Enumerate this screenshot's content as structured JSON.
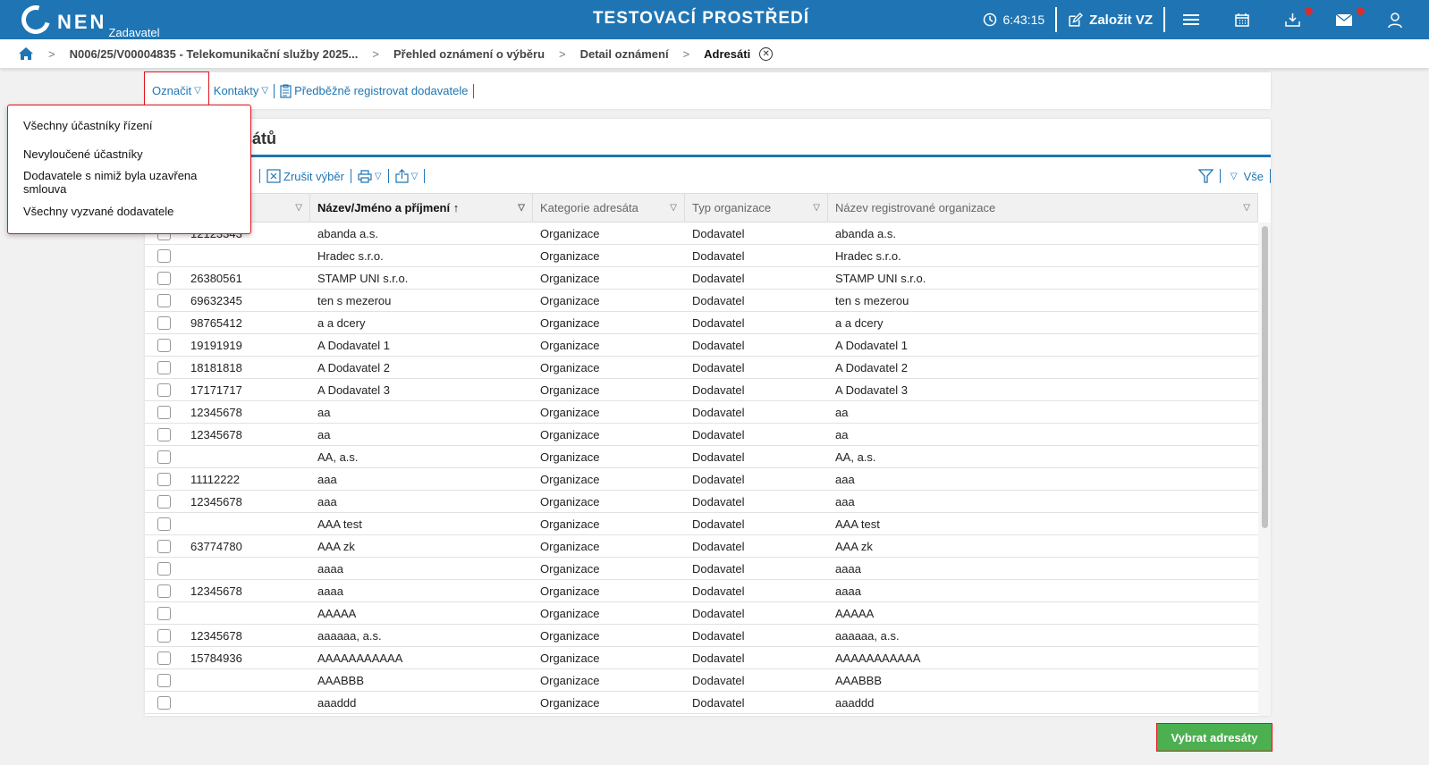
{
  "header": {
    "logo": "NEN",
    "logo_sub": "Zadavatel",
    "env_title": "TESTOVACÍ PROSTŘEDÍ",
    "timer": "6:43:15",
    "create_label": "Založit VZ"
  },
  "breadcrumb": {
    "items": [
      "N006/25/V00004835 - Telekomunikační služby 2025...",
      "Přehled oznámení o výběru",
      "Detail oznámení"
    ],
    "current": "Adresáti"
  },
  "toolbar": {
    "mark": "Označit",
    "contacts": "Kontakty",
    "preregister": "Předběžně registrovat dodavatele"
  },
  "dropdown": {
    "items": [
      "Všechny účastníky řízení",
      "Nevyloučené účastníky",
      "Dodavatele s nimiž byla uzavřena smlouva",
      "Všechny vyzvané dodavatele"
    ]
  },
  "panel": {
    "title": "sátů",
    "clear_selection": "Zrušit výběr",
    "all": "Vše"
  },
  "table": {
    "columns": [
      "",
      "Název/Jméno a příjmení",
      "Kategorie adresáta",
      "Typ organizace",
      "Název registrované organizace"
    ],
    "rows": [
      [
        "12123343",
        "abanda a.s.",
        "Organizace",
        "Dodavatel",
        "abanda a.s."
      ],
      [
        "",
        "Hradec s.r.o.",
        "Organizace",
        "Dodavatel",
        "Hradec s.r.o."
      ],
      [
        "26380561",
        "STAMP UNI s.r.o.",
        "Organizace",
        "Dodavatel",
        "STAMP UNI s.r.o."
      ],
      [
        "69632345",
        "ten s mezerou",
        "Organizace",
        "Dodavatel",
        "ten s mezerou"
      ],
      [
        "98765412",
        "a a dcery",
        "Organizace",
        "Dodavatel",
        "a a dcery"
      ],
      [
        "19191919",
        "A Dodavatel 1",
        "Organizace",
        "Dodavatel",
        "A Dodavatel 1"
      ],
      [
        "18181818",
        "A Dodavatel 2",
        "Organizace",
        "Dodavatel",
        "A Dodavatel 2"
      ],
      [
        "17171717",
        "A Dodavatel 3",
        "Organizace",
        "Dodavatel",
        "A Dodavatel 3"
      ],
      [
        "12345678",
        "aa",
        "Organizace",
        "Dodavatel",
        "aa"
      ],
      [
        "12345678",
        "aa",
        "Organizace",
        "Dodavatel",
        "aa"
      ],
      [
        "",
        "AA, a.s.",
        "Organizace",
        "Dodavatel",
        "AA, a.s."
      ],
      [
        "11112222",
        "aaa",
        "Organizace",
        "Dodavatel",
        "aaa"
      ],
      [
        "12345678",
        "aaa",
        "Organizace",
        "Dodavatel",
        "aaa"
      ],
      [
        "",
        "AAA test",
        "Organizace",
        "Dodavatel",
        "AAA test"
      ],
      [
        "63774780",
        "AAA zk",
        "Organizace",
        "Dodavatel",
        "AAA zk"
      ],
      [
        "",
        "aaaa",
        "Organizace",
        "Dodavatel",
        "aaaa"
      ],
      [
        "12345678",
        "aaaa",
        "Organizace",
        "Dodavatel",
        "aaaa"
      ],
      [
        "",
        "AAAAA",
        "Organizace",
        "Dodavatel",
        "AAAAA"
      ],
      [
        "12345678",
        "aaaaaa, a.s.",
        "Organizace",
        "Dodavatel",
        "aaaaaa, a.s."
      ],
      [
        "15784936",
        "AAAAAAAAAAA",
        "Organizace",
        "Dodavatel",
        "AAAAAAAAAAA"
      ],
      [
        "",
        "AAABBB",
        "Organizace",
        "Dodavatel",
        "AAABBB"
      ],
      [
        "",
        "aaaddd",
        "Organizace",
        "Dodavatel",
        "aaaddd"
      ]
    ]
  },
  "footer": {
    "select_button": "Vybrat adresáty"
  },
  "colors": {
    "brand": "#1f75b4",
    "accent_green": "#4caf50",
    "highlight": "#e0141e",
    "badge": "#d32f2f"
  }
}
